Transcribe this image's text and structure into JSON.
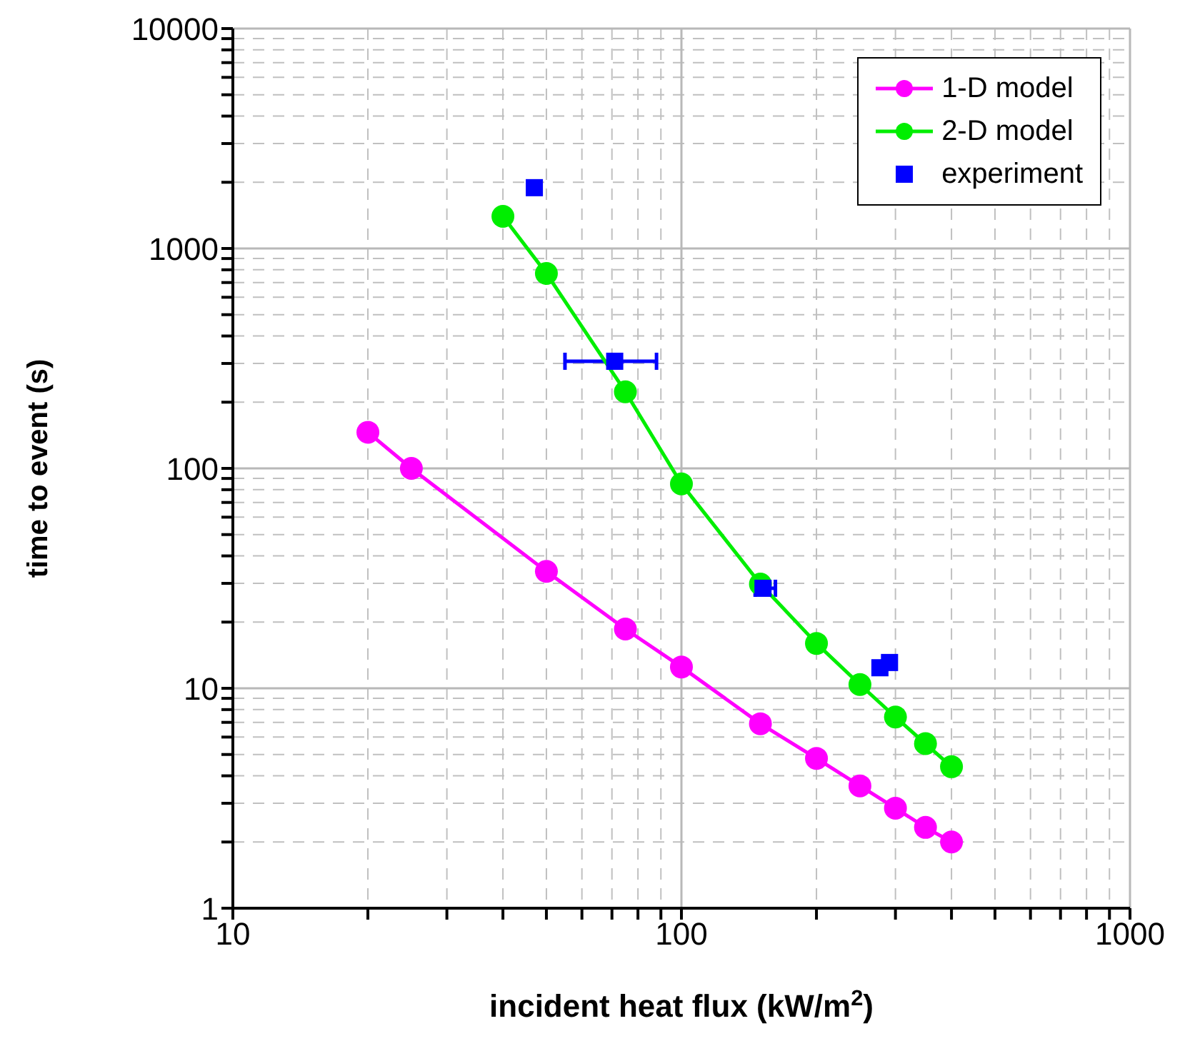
{
  "chart_data": {
    "type": "line",
    "xlabel": "incident heat flux (kW/m$^{2}$)",
    "ylabel": "time to event (s)",
    "log": "xy",
    "grid": true,
    "legend": "top right",
    "marker": "circle",
    "line_style": "solid",
    "xlim": [
      10,
      1000
    ],
    "xticks": [
      10,
      {
        "value": 20,
        "label": null
      },
      {
        "value": 30,
        "label": null
      },
      {
        "value": 40,
        "label": null
      },
      {
        "value": 50,
        "label": null
      },
      {
        "value": 60,
        "label": null
      },
      {
        "value": 70,
        "label": null
      },
      {
        "value": 80,
        "label": null
      },
      {
        "value": 90,
        "label": null
      },
      100,
      {
        "value": 200,
        "label": null
      },
      {
        "value": 300,
        "label": null
      },
      {
        "value": 400,
        "label": null
      },
      {
        "value": 500,
        "label": null
      },
      {
        "value": 600,
        "label": null
      },
      {
        "value": 700,
        "label": null
      },
      {
        "value": 800,
        "label": null
      },
      {
        "value": 900,
        "label": null
      },
      1000
    ],
    "ylim": [
      1,
      10000
    ],
    "yticks": [
      1,
      {
        "value": 2,
        "label": null
      },
      {
        "value": 3,
        "label": null
      },
      {
        "value": 4,
        "label": null
      },
      {
        "value": 5,
        "label": null
      },
      {
        "value": 6,
        "label": null
      },
      {
        "value": 7,
        "label": null
      },
      {
        "value": 8,
        "label": null
      },
      {
        "value": 9,
        "label": null
      },
      10,
      {
        "value": 20,
        "label": null
      },
      {
        "value": 30,
        "label": null
      },
      {
        "value": 40,
        "label": null
      },
      {
        "value": 50,
        "label": null
      },
      {
        "value": 60,
        "label": null
      },
      {
        "value": 70,
        "label": null
      },
      {
        "value": 80,
        "label": null
      },
      {
        "value": 90,
        "label": null
      },
      100,
      {
        "value": 200,
        "label": null
      },
      {
        "value": 300,
        "label": null
      },
      {
        "value": 400,
        "label": null
      },
      {
        "value": 500,
        "label": null
      },
      {
        "value": 600,
        "label": null
      },
      {
        "value": 700,
        "label": null
      },
      {
        "value": 800,
        "label": null
      },
      {
        "value": 900,
        "label": null
      },
      1000,
      {
        "value": 2000,
        "label": null
      },
      {
        "value": 3000,
        "label": null
      },
      {
        "value": 4000,
        "label": null
      },
      {
        "value": 5000,
        "label": null
      },
      {
        "value": 6000,
        "label": null
      },
      {
        "value": 7000,
        "label": null
      },
      {
        "value": 8000,
        "label": null
      },
      {
        "value": 9000,
        "label": null
      },
      10000
    ],
    "series": [
      {
        "name": "1-D model",
        "color": "#ff00ff",
        "x": [
          20,
          25,
          50,
          75,
          100,
          150,
          200,
          250,
          300,
          350,
          400
        ],
        "values": [
          146,
          100,
          34,
          18.6,
          12.5,
          6.9,
          4.8,
          3.6,
          2.85,
          2.33,
          2.0
        ]
      },
      {
        "name": "2-D model",
        "color": "#00ee00",
        "x": [
          40,
          50,
          75,
          100,
          150,
          200,
          250,
          300,
          350,
          400
        ],
        "values": [
          1400,
          770,
          223,
          85,
          29.8,
          16,
          10.4,
          7.4,
          5.6,
          4.4
        ]
      },
      {
        "name": "experiment",
        "type": "scatter",
        "color": "#0000ff",
        "marker": "square",
        "x": [
          47,
          71,
          152,
          277,
          291
        ],
        "values": [
          1890,
          307,
          28.5,
          12.4,
          13.1
        ],
        "xerrors": [
          null,
          [
            55,
            88
          ],
          [
            146,
            162
          ],
          null,
          null
        ]
      }
    ]
  }
}
